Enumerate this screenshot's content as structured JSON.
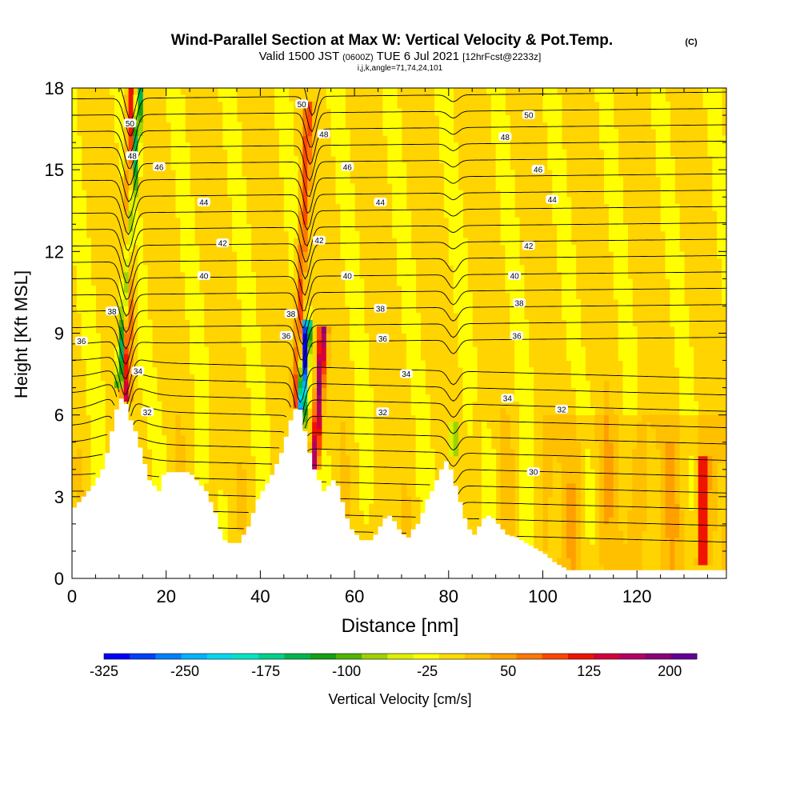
{
  "title": {
    "main": "Wind-Parallel Section at Max W: Vertical Velocity & Pot.Temp.",
    "copyright": "(C)",
    "valid_prefix": "Valid 1500 JST",
    "valid_utc": "(0600Z)",
    "valid_date": "TUE 6 Jul 2021",
    "forecast": "[12hrFcst@2233z]",
    "indices": "i,j,k,angle=71,74,24,101"
  },
  "chart_data": {
    "type": "heatmap",
    "xlabel": "Distance [nm]",
    "ylabel": "Height [Kft MSL]",
    "xlim": [
      0,
      139
    ],
    "ylim": [
      0,
      18
    ],
    "x_ticks": [
      0,
      20,
      40,
      60,
      80,
      100,
      120
    ],
    "y_ticks": [
      0,
      3,
      6,
      9,
      12,
      15,
      18
    ],
    "x_tick_labels": [
      "0",
      "20",
      "40",
      "60",
      "80",
      "100",
      "120"
    ],
    "y_tick_labels": [
      "0",
      "3",
      "6",
      "9",
      "12",
      "15",
      "18"
    ],
    "terrain": [
      [
        0,
        2.6
      ],
      [
        2,
        3.0
      ],
      [
        4,
        3.4
      ],
      [
        6,
        4.0
      ],
      [
        7,
        4.6
      ],
      [
        8,
        5.4
      ],
      [
        9,
        6.2
      ],
      [
        10,
        6.6
      ],
      [
        11,
        6.4
      ],
      [
        12,
        5.8
      ],
      [
        13,
        5.4
      ],
      [
        14,
        4.8
      ],
      [
        15,
        4.2
      ],
      [
        16,
        3.6
      ],
      [
        17,
        3.4
      ],
      [
        18,
        3.2
      ],
      [
        19,
        3.8
      ],
      [
        20,
        3.9
      ],
      [
        22,
        3.9
      ],
      [
        24,
        3.9
      ],
      [
        25,
        3.8
      ],
      [
        26,
        3.6
      ],
      [
        27,
        3.4
      ],
      [
        28,
        3.2
      ],
      [
        29,
        2.8
      ],
      [
        30,
        2.4
      ],
      [
        31,
        1.8
      ],
      [
        32,
        1.4
      ],
      [
        33,
        1.3
      ],
      [
        35,
        1.3
      ],
      [
        36,
        1.6
      ],
      [
        37,
        1.9
      ],
      [
        38,
        2.4
      ],
      [
        39,
        2.9
      ],
      [
        40,
        3.2
      ],
      [
        42,
        3.8
      ],
      [
        44,
        4.6
      ],
      [
        45,
        5.2
      ],
      [
        46,
        5.8
      ],
      [
        47,
        6.2
      ],
      [
        48,
        6.2
      ],
      [
        49,
        5.4
      ],
      [
        50,
        4.6
      ],
      [
        51,
        4.0
      ],
      [
        52,
        3.6
      ],
      [
        53,
        3.2
      ],
      [
        54,
        3.4
      ],
      [
        55,
        3.6
      ],
      [
        56,
        3.4
      ],
      [
        57,
        2.8
      ],
      [
        58,
        2.2
      ],
      [
        59,
        1.8
      ],
      [
        60,
        1.6
      ],
      [
        61,
        1.4
      ],
      [
        63,
        1.4
      ],
      [
        64,
        1.6
      ],
      [
        65,
        1.9
      ],
      [
        66,
        2.2
      ],
      [
        67,
        2.3
      ],
      [
        68,
        2.1
      ],
      [
        69,
        1.8
      ],
      [
        70,
        1.6
      ],
      [
        71,
        1.5
      ],
      [
        72,
        1.8
      ],
      [
        73,
        2.0
      ],
      [
        74,
        2.4
      ],
      [
        75,
        2.9
      ],
      [
        76,
        3.2
      ],
      [
        77,
        3.6
      ],
      [
        78,
        4.0
      ],
      [
        79,
        4.3
      ],
      [
        80,
        4.0
      ],
      [
        81,
        3.4
      ],
      [
        82,
        2.8
      ],
      [
        83,
        2.2
      ],
      [
        84,
        1.8
      ],
      [
        85,
        1.6
      ],
      [
        86,
        1.9
      ],
      [
        87,
        2.2
      ],
      [
        88,
        2.3
      ],
      [
        89,
        2.2
      ],
      [
        90,
        2.0
      ],
      [
        91,
        1.8
      ],
      [
        92,
        1.6
      ],
      [
        94,
        1.5
      ],
      [
        96,
        1.3
      ],
      [
        98,
        1.1
      ],
      [
        100,
        0.9
      ],
      [
        102,
        0.6
      ],
      [
        104,
        0.4
      ],
      [
        105,
        0.3
      ],
      [
        107,
        0.3
      ],
      [
        139,
        0.3
      ]
    ],
    "updrafts": [
      {
        "x_center": 11.5,
        "lean": 0.1,
        "y_bottom": 6.4,
        "y_top": 18.0,
        "peak": 140
      },
      {
        "x_center": 47.5,
        "lean": 0.25,
        "y_bottom": 6.3,
        "y_top": 17.5,
        "peak": 110
      },
      {
        "x_center": 51.5,
        "lean": 0.35,
        "y_bottom": 4.0,
        "y_top": 9.3,
        "peak": 200
      },
      {
        "x_center": 134.0,
        "lean": 0.0,
        "y_bottom": 0.4,
        "y_top": 4.4,
        "peak": 140
      }
    ],
    "downdrafts": [
      {
        "x_center": 10.0,
        "lean": 0.4,
        "y_bottom": 7.0,
        "y_top": 18.0,
        "peak": -175
      },
      {
        "x_center": 48.5,
        "lean": 0.35,
        "y_bottom": 5.5,
        "y_top": 9.5,
        "peak": -325
      },
      {
        "x_center": 81.0,
        "lean": 0.0,
        "y_bottom": 4.6,
        "y_top": 5.8,
        "peak": -100
      }
    ],
    "theta_contour_labels": [
      {
        "value": "36",
        "x": 2,
        "y": 8.7
      },
      {
        "value": "38",
        "x": 8.5,
        "y": 9.8
      },
      {
        "value": "34",
        "x": 14,
        "y": 7.6
      },
      {
        "value": "32",
        "x": 16,
        "y": 6.1
      },
      {
        "value": "50",
        "x": 12.3,
        "y": 16.7
      },
      {
        "value": "48",
        "x": 12.8,
        "y": 15.5
      },
      {
        "value": "46",
        "x": 18.5,
        "y": 15.1
      },
      {
        "value": "44",
        "x": 28,
        "y": 13.8
      },
      {
        "value": "42",
        "x": 32,
        "y": 12.3
      },
      {
        "value": "40",
        "x": 28,
        "y": 11.1
      },
      {
        "value": "50",
        "x": 48.8,
        "y": 17.4
      },
      {
        "value": "48",
        "x": 53.5,
        "y": 16.3
      },
      {
        "value": "46",
        "x": 58.5,
        "y": 15.1
      },
      {
        "value": "44",
        "x": 65.5,
        "y": 13.8
      },
      {
        "value": "42",
        "x": 52.5,
        "y": 12.4
      },
      {
        "value": "40",
        "x": 58.5,
        "y": 11.1
      },
      {
        "value": "38",
        "x": 65.5,
        "y": 9.9
      },
      {
        "value": "36",
        "x": 66,
        "y": 8.8
      },
      {
        "value": "38",
        "x": 46.5,
        "y": 9.7
      },
      {
        "value": "36",
        "x": 45.5,
        "y": 8.9
      },
      {
        "value": "34",
        "x": 71,
        "y": 7.5
      },
      {
        "value": "32",
        "x": 66,
        "y": 6.1
      },
      {
        "value": "50",
        "x": 97,
        "y": 17.0
      },
      {
        "value": "48",
        "x": 92,
        "y": 16.2
      },
      {
        "value": "46",
        "x": 99,
        "y": 15.0
      },
      {
        "value": "44",
        "x": 102,
        "y": 13.9
      },
      {
        "value": "42",
        "x": 97,
        "y": 12.2
      },
      {
        "value": "40",
        "x": 94,
        "y": 11.1
      },
      {
        "value": "38",
        "x": 95,
        "y": 10.1
      },
      {
        "value": "36",
        "x": 94.5,
        "y": 8.9
      },
      {
        "value": "34",
        "x": 92.5,
        "y": 6.6
      },
      {
        "value": "32",
        "x": 104,
        "y": 6.2
      },
      {
        "value": "30",
        "x": 98,
        "y": 3.9
      }
    ],
    "colorbar": {
      "label": "Vertical Velocity [cm/s]",
      "tick_labels": [
        "-325",
        "-250",
        "-175",
        "-100",
        "-25",
        "50",
        "125",
        "200"
      ],
      "levels": [
        -325,
        -300,
        -275,
        -250,
        -225,
        -200,
        -175,
        -150,
        -125,
        -100,
        -75,
        -50,
        -25,
        0,
        25,
        50,
        75,
        100,
        125,
        150,
        175,
        200,
        225
      ],
      "colors": [
        "#0000ff",
        "#0040ff",
        "#0080ff",
        "#00b4ff",
        "#00d8f0",
        "#00e6c4",
        "#00d08c",
        "#00b450",
        "#14a014",
        "#50b400",
        "#a0d200",
        "#dcf000",
        "#ffff00",
        "#ffdc00",
        "#ffc000",
        "#ffa000",
        "#ff7800",
        "#ff4600",
        "#f01400",
        "#d2003c",
        "#b40064",
        "#8c0078",
        "#640096"
      ]
    }
  }
}
